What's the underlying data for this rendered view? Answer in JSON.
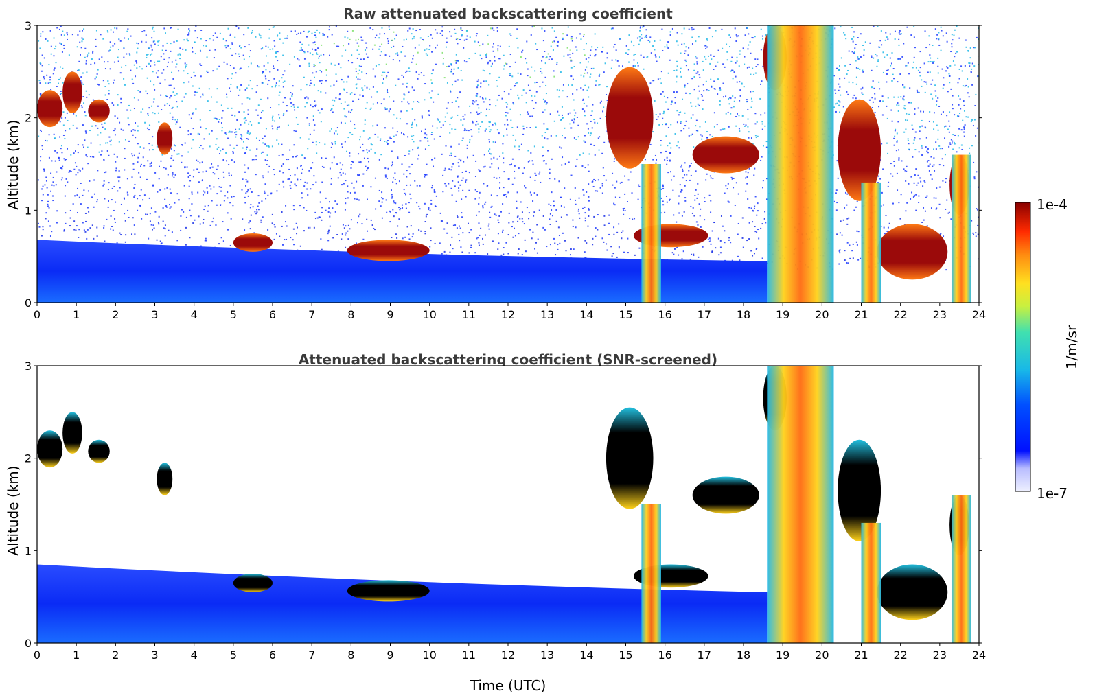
{
  "colors": {
    "background": "#ffffff",
    "title": "#3a3a3a",
    "boundary_layer": "#0a2bf5",
    "noise_low": "#1f3cff",
    "noise_mid": "#22b8e8",
    "noise_high": "#7ee06a",
    "cloud_core": "#9b0a0a",
    "cloud_edge": "#ff7a14",
    "screened_core": "#000000"
  },
  "colorbar": {
    "label": "1/m/sr",
    "max_label": "1e-4",
    "min_label": "1e-7",
    "scale": "log",
    "colormap": "jet"
  },
  "chart_data": [
    {
      "type": "heatmap",
      "title": "Raw attenuated backscattering coefficient",
      "xlabel": "",
      "ylabel": "Altitude (km)",
      "xlim": [
        0,
        24
      ],
      "ylim": [
        0,
        3
      ],
      "xticks": [
        0,
        1,
        2,
        3,
        4,
        5,
        6,
        7,
        8,
        9,
        10,
        11,
        12,
        13,
        14,
        15,
        16,
        17,
        18,
        19,
        20,
        21,
        22,
        23,
        24
      ],
      "yticks": [
        0,
        1,
        2,
        3
      ],
      "background_noise": true,
      "features": [
        {
          "kind": "boundary_layer",
          "x": [
            0,
            18.6
          ],
          "top_km": [
            0.68,
            0.45
          ]
        },
        {
          "kind": "cloud",
          "x": [
            0.0,
            0.65
          ],
          "y": [
            1.9,
            2.3
          ]
        },
        {
          "kind": "cloud",
          "x": [
            0.65,
            1.15
          ],
          "y": [
            2.05,
            2.5
          ]
        },
        {
          "kind": "cloud",
          "x": [
            1.3,
            1.85
          ],
          "y": [
            1.95,
            2.2
          ]
        },
        {
          "kind": "cloud",
          "x": [
            3.05,
            3.45
          ],
          "y": [
            1.6,
            1.95
          ]
        },
        {
          "kind": "cloud",
          "x": [
            5.0,
            6.0
          ],
          "y": [
            0.55,
            0.75
          ]
        },
        {
          "kind": "cloud",
          "x": [
            7.9,
            10.0
          ],
          "y": [
            0.45,
            0.68
          ]
        },
        {
          "kind": "cloud",
          "x": [
            14.5,
            15.7
          ],
          "y": [
            1.45,
            2.55
          ]
        },
        {
          "kind": "cloud",
          "x": [
            15.2,
            17.1
          ],
          "y": [
            0.6,
            0.85
          ]
        },
        {
          "kind": "cloud",
          "x": [
            16.7,
            18.4
          ],
          "y": [
            1.4,
            1.8
          ]
        },
        {
          "kind": "cloud",
          "x": [
            18.5,
            19.1
          ],
          "y": [
            2.3,
            3.0
          ]
        },
        {
          "kind": "cloud",
          "x": [
            20.4,
            21.5
          ],
          "y": [
            1.1,
            2.2
          ]
        },
        {
          "kind": "cloud",
          "x": [
            21.4,
            23.2
          ],
          "y": [
            0.25,
            0.85
          ]
        },
        {
          "kind": "cloud",
          "x": [
            23.25,
            23.75
          ],
          "y": [
            0.95,
            1.6
          ]
        },
        {
          "kind": "precipitation",
          "x": [
            15.4,
            15.9
          ],
          "y": [
            0.0,
            1.5
          ]
        },
        {
          "kind": "precipitation",
          "x": [
            18.6,
            20.3
          ],
          "y": [
            0.0,
            3.0
          ]
        },
        {
          "kind": "precipitation",
          "x": [
            21.0,
            21.5
          ],
          "y": [
            0.0,
            1.3
          ]
        },
        {
          "kind": "precipitation",
          "x": [
            23.3,
            23.8
          ],
          "y": [
            0.0,
            1.6
          ]
        }
      ]
    },
    {
      "type": "heatmap",
      "title": "Attenuated backscattering coefficient (SNR-screened)",
      "xlabel": "Time (UTC)",
      "ylabel": "Altitude (km)",
      "xlim": [
        0,
        24
      ],
      "ylim": [
        0,
        3
      ],
      "xticks": [
        0,
        1,
        2,
        3,
        4,
        5,
        6,
        7,
        8,
        9,
        10,
        11,
        12,
        13,
        14,
        15,
        16,
        17,
        18,
        19,
        20,
        21,
        22,
        23,
        24
      ],
      "yticks": [
        0,
        1,
        2,
        3
      ],
      "background_noise": false,
      "features": [
        {
          "kind": "boundary_layer",
          "x": [
            0,
            18.6
          ],
          "top_km": [
            0.85,
            0.55
          ]
        },
        {
          "kind": "cloud",
          "x": [
            0.0,
            0.65
          ],
          "y": [
            1.9,
            2.3
          ]
        },
        {
          "kind": "cloud",
          "x": [
            0.65,
            1.15
          ],
          "y": [
            2.05,
            2.5
          ]
        },
        {
          "kind": "cloud",
          "x": [
            1.3,
            1.85
          ],
          "y": [
            1.95,
            2.2
          ]
        },
        {
          "kind": "cloud",
          "x": [
            3.05,
            3.45
          ],
          "y": [
            1.6,
            1.95
          ]
        },
        {
          "kind": "cloud",
          "x": [
            5.0,
            6.0
          ],
          "y": [
            0.55,
            0.75
          ]
        },
        {
          "kind": "cloud",
          "x": [
            7.9,
            10.0
          ],
          "y": [
            0.45,
            0.68
          ]
        },
        {
          "kind": "cloud",
          "x": [
            14.5,
            15.7
          ],
          "y": [
            1.45,
            2.55
          ]
        },
        {
          "kind": "cloud",
          "x": [
            15.2,
            17.1
          ],
          "y": [
            0.6,
            0.85
          ]
        },
        {
          "kind": "cloud",
          "x": [
            16.7,
            18.4
          ],
          "y": [
            1.4,
            1.8
          ]
        },
        {
          "kind": "cloud",
          "x": [
            18.5,
            19.1
          ],
          "y": [
            2.3,
            3.0
          ]
        },
        {
          "kind": "cloud",
          "x": [
            20.4,
            21.5
          ],
          "y": [
            1.1,
            2.2
          ]
        },
        {
          "kind": "cloud",
          "x": [
            21.4,
            23.2
          ],
          "y": [
            0.25,
            0.85
          ]
        },
        {
          "kind": "cloud",
          "x": [
            23.25,
            23.75
          ],
          "y": [
            0.95,
            1.6
          ]
        },
        {
          "kind": "precipitation",
          "x": [
            15.4,
            15.9
          ],
          "y": [
            0.0,
            1.5
          ]
        },
        {
          "kind": "precipitation",
          "x": [
            18.6,
            20.3
          ],
          "y": [
            0.0,
            3.0
          ]
        },
        {
          "kind": "precipitation",
          "x": [
            21.0,
            21.5
          ],
          "y": [
            0.0,
            1.3
          ]
        },
        {
          "kind": "precipitation",
          "x": [
            23.3,
            23.8
          ],
          "y": [
            0.0,
            1.6
          ]
        }
      ]
    }
  ]
}
